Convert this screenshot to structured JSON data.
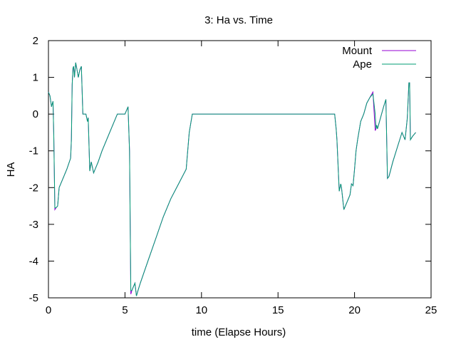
{
  "chart_data": {
    "type": "line",
    "title": "3: Ha vs. Time",
    "xlabel": "time (Elapse Hours)",
    "ylabel": "HA",
    "xlim": [
      0,
      25
    ],
    "ylim": [
      -5,
      2
    ],
    "xticks": [
      0,
      5,
      10,
      15,
      20,
      25
    ],
    "yticks": [
      -5,
      -4,
      -3,
      -2,
      -1,
      0,
      1,
      2
    ],
    "grid": false,
    "legend_position": "top-right",
    "series": [
      {
        "name": "Mount",
        "color": "#9400d3",
        "x": [
          0.0,
          0.1,
          0.2,
          0.3,
          0.35,
          0.42,
          0.5,
          0.6,
          0.7,
          0.8,
          1.0,
          1.2,
          1.45,
          1.5,
          1.55,
          1.6,
          1.65,
          1.7,
          1.78,
          1.85,
          1.95,
          2.05,
          2.15,
          2.25,
          2.35,
          2.45,
          2.55,
          2.6,
          2.7,
          2.8,
          2.95,
          3.05,
          3.15,
          3.25,
          3.5,
          4.0,
          4.5,
          4.8,
          5.0,
          5.2,
          5.3,
          5.38,
          5.45,
          5.55,
          5.65,
          5.75,
          5.85,
          6.0,
          6.5,
          7.0,
          7.5,
          8.0,
          8.5,
          9.0,
          9.2,
          9.4,
          9.45,
          10.0,
          12.0,
          14.0,
          16.0,
          18.0,
          18.7,
          18.8,
          18.85,
          19.0,
          19.1,
          19.15,
          19.3,
          19.5,
          19.7,
          19.8,
          19.9,
          20.0,
          20.1,
          20.2,
          20.4,
          20.6,
          20.8,
          21.0,
          21.2,
          21.35,
          21.4,
          21.45,
          21.5,
          21.7,
          21.9,
          22.05,
          22.15,
          22.25,
          22.5,
          22.8,
          23.1,
          23.3,
          23.45,
          23.55,
          23.6,
          23.65,
          23.8,
          24.0
        ],
        "y": [
          0.6,
          0.5,
          0.2,
          0.35,
          -0.6,
          -2.6,
          -2.55,
          -2.5,
          -2.0,
          -1.9,
          -1.7,
          -1.5,
          -1.2,
          -0.7,
          0.8,
          1.25,
          1.3,
          1.0,
          1.4,
          1.25,
          1.0,
          1.2,
          1.3,
          0.0,
          0.0,
          0.0,
          -0.2,
          -0.1,
          -1.55,
          -1.3,
          -1.6,
          -1.5,
          -1.4,
          -1.3,
          -1.0,
          -0.5,
          0.0,
          0.0,
          0.0,
          0.2,
          -1.0,
          -4.9,
          -4.8,
          -4.7,
          -4.6,
          -4.95,
          -4.8,
          -4.6,
          -4.0,
          -3.4,
          -2.8,
          -2.3,
          -1.9,
          -1.5,
          -0.5,
          0.0,
          0.0,
          0.0,
          0.0,
          0.0,
          0.0,
          0.0,
          0.0,
          -0.4,
          -0.7,
          -2.1,
          -1.9,
          -2.0,
          -2.6,
          -2.4,
          -2.2,
          -1.9,
          -1.95,
          -1.5,
          -1.0,
          -0.7,
          -0.2,
          0.0,
          0.3,
          0.45,
          0.6,
          -0.45,
          -0.4,
          -0.3,
          -0.4,
          -0.1,
          0.2,
          0.4,
          -1.75,
          -1.7,
          -1.3,
          -0.9,
          -0.5,
          -0.7,
          -0.1,
          0.85,
          0.85,
          -0.7,
          -0.6,
          -0.5
        ]
      },
      {
        "name": "Ape",
        "color": "#009e73",
        "x": [
          0.0,
          0.1,
          0.2,
          0.3,
          0.35,
          0.42,
          0.5,
          0.6,
          0.7,
          0.8,
          1.0,
          1.2,
          1.45,
          1.5,
          1.55,
          1.6,
          1.65,
          1.7,
          1.78,
          1.85,
          1.95,
          2.05,
          2.15,
          2.25,
          2.35,
          2.45,
          2.55,
          2.6,
          2.7,
          2.8,
          2.95,
          3.05,
          3.15,
          3.25,
          3.5,
          4.0,
          4.5,
          4.8,
          5.0,
          5.2,
          5.3,
          5.38,
          5.45,
          5.55,
          5.65,
          5.75,
          5.85,
          6.0,
          6.5,
          7.0,
          7.5,
          8.0,
          8.5,
          9.0,
          9.2,
          9.4,
          9.45,
          10.0,
          12.0,
          14.0,
          16.0,
          18.0,
          18.7,
          18.8,
          18.85,
          19.0,
          19.1,
          19.15,
          19.3,
          19.5,
          19.7,
          19.8,
          19.9,
          20.0,
          20.1,
          20.2,
          20.4,
          20.6,
          20.8,
          21.0,
          21.2,
          21.35,
          21.4,
          21.45,
          21.5,
          21.7,
          21.9,
          22.05,
          22.15,
          22.25,
          22.5,
          22.8,
          23.1,
          23.3,
          23.45,
          23.55,
          23.6,
          23.65,
          23.8,
          24.0
        ],
        "y": [
          0.6,
          0.5,
          0.2,
          0.35,
          -0.6,
          -2.55,
          -2.55,
          -2.5,
          -2.0,
          -1.9,
          -1.7,
          -1.5,
          -1.2,
          -0.7,
          0.8,
          1.25,
          1.3,
          1.0,
          1.4,
          1.25,
          1.0,
          1.2,
          1.3,
          0.0,
          0.0,
          0.0,
          -0.2,
          -0.1,
          -1.55,
          -1.3,
          -1.6,
          -1.5,
          -1.4,
          -1.3,
          -1.0,
          -0.5,
          0.0,
          0.0,
          0.0,
          0.2,
          -1.0,
          -4.8,
          -4.8,
          -4.7,
          -4.6,
          -4.95,
          -4.8,
          -4.6,
          -4.0,
          -3.4,
          -2.8,
          -2.3,
          -1.9,
          -1.5,
          -0.5,
          0.0,
          0.0,
          0.0,
          0.0,
          0.0,
          0.0,
          0.0,
          0.0,
          -0.4,
          -0.7,
          -2.1,
          -1.9,
          -2.0,
          -2.6,
          -2.4,
          -2.2,
          -1.9,
          -1.95,
          -1.5,
          -1.0,
          -0.7,
          -0.2,
          0.0,
          0.3,
          0.45,
          0.55,
          0.0,
          -0.4,
          -0.3,
          -0.4,
          -0.1,
          0.2,
          0.4,
          -1.75,
          -1.7,
          -1.3,
          -0.9,
          -0.5,
          -0.7,
          -0.1,
          0.85,
          0.85,
          -0.7,
          -0.6,
          -0.5
        ]
      }
    ]
  }
}
